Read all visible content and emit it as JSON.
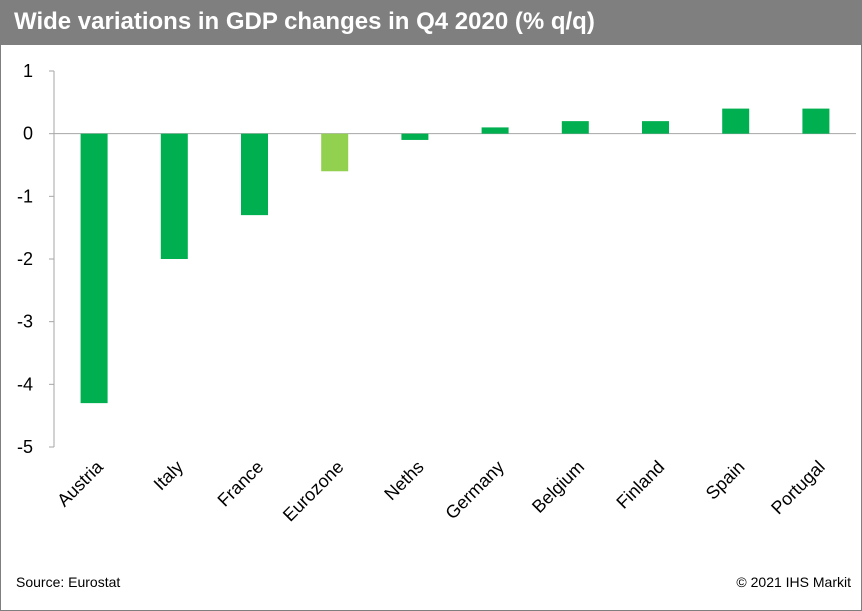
{
  "header": {
    "title": "Wide variations in GDP changes in Q4 2020 (% q/q)"
  },
  "footer": {
    "source": "Source: Eurostat",
    "copyright": "© 2021 IHS Markit"
  },
  "colors": {
    "header_bg": "#7f7f7f",
    "bar": "#00b050",
    "bar_highlight": "#92d050",
    "axis": "#a6a6a6"
  },
  "chart_data": {
    "type": "bar",
    "categories": [
      "Austria",
      "Italy",
      "France",
      "Eurozone",
      "Neths",
      "Germany",
      "Belgium",
      "Finland",
      "Spain",
      "Portugal"
    ],
    "values": [
      -4.3,
      -2.0,
      -1.3,
      -0.6,
      -0.1,
      0.1,
      0.2,
      0.2,
      0.4,
      0.4
    ],
    "highlight": [
      "Eurozone"
    ],
    "ylim": [
      -5,
      1
    ],
    "yticks": [
      1,
      0,
      -1,
      -2,
      -3,
      -4,
      -5
    ],
    "grid": false,
    "legend": "none"
  }
}
